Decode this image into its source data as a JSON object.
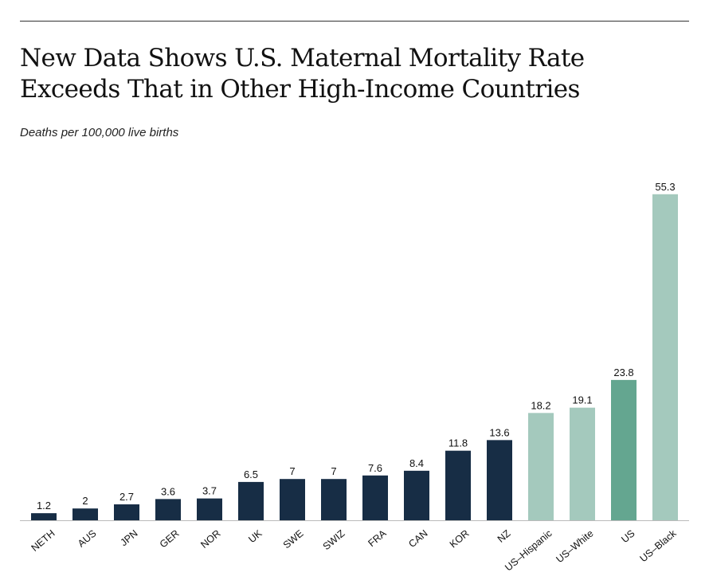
{
  "header": {
    "title_line1": "New Data Shows U.S. Maternal Mortality Rate",
    "title_line2": "Exceeds That in Other High-Income Countries",
    "subtitle": "Deaths per 100,000 live births"
  },
  "chart_data": {
    "type": "bar",
    "title": "New Data Shows U.S. Maternal Mortality Rate Exceeds That in Other High-Income Countries",
    "ylabel": "Deaths per 100,000 live births",
    "xlabel": "",
    "ylim": [
      0,
      60
    ],
    "grid": false,
    "legend": "none",
    "categories": [
      "NETH",
      "AUS",
      "JPN",
      "GER",
      "NOR",
      "UK",
      "SWE",
      "SWIZ",
      "FRA",
      "CAN",
      "KOR",
      "NZ",
      "US–Hispanic",
      "US–White",
      "US",
      "US–Black"
    ],
    "values": [
      1.2,
      2,
      2.7,
      3.6,
      3.7,
      6.5,
      7,
      7,
      7.6,
      8.4,
      11.8,
      13.6,
      18.2,
      19.1,
      23.8,
      55.3
    ],
    "value_labels": [
      "1.2",
      "2",
      "2.7",
      "3.6",
      "3.7",
      "6.5",
      "7",
      "7",
      "7.6",
      "8.4",
      "11.8",
      "13.6",
      "18.2",
      "19.1",
      "23.8",
      "55.3"
    ],
    "bar_colors": [
      "#172d45",
      "#172d45",
      "#172d45",
      "#172d45",
      "#172d45",
      "#172d45",
      "#172d45",
      "#172d45",
      "#172d45",
      "#172d45",
      "#172d45",
      "#172d45",
      "#a4c9bd",
      "#a4c9bd",
      "#64a690",
      "#a4c9bd"
    ]
  },
  "colors": {
    "other_countries": "#172d45",
    "us_subgroups": "#a4c9bd",
    "us_total": "#64a690",
    "baseline": "#bbbbbb"
  }
}
